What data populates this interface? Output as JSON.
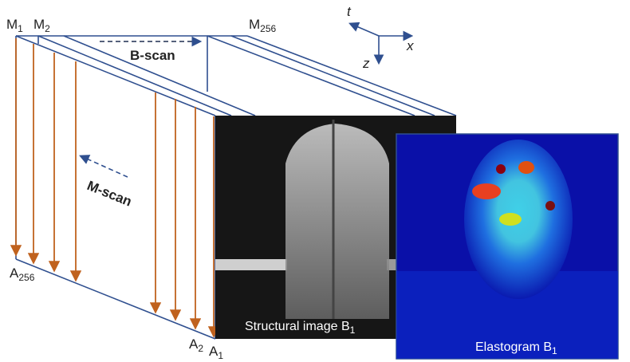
{
  "labels": {
    "m1": {
      "base": "M",
      "sub": "1"
    },
    "m2": {
      "base": "M",
      "sub": "2"
    },
    "m256": {
      "base": "M",
      "sub": "256"
    },
    "a256": {
      "base": "A",
      "sub": "256"
    },
    "a2": {
      "base": "A",
      "sub": "2"
    },
    "a1": {
      "base": "A",
      "sub": "1"
    }
  },
  "b_scan": "B-scan",
  "m_scan": "M-scan",
  "axes": {
    "t": "t",
    "x": "x",
    "z": "z"
  },
  "structural": {
    "text": "Structural image B",
    "sub": "1"
  },
  "elastogram": {
    "text": "Elastogram B",
    "sub": "1"
  }
}
